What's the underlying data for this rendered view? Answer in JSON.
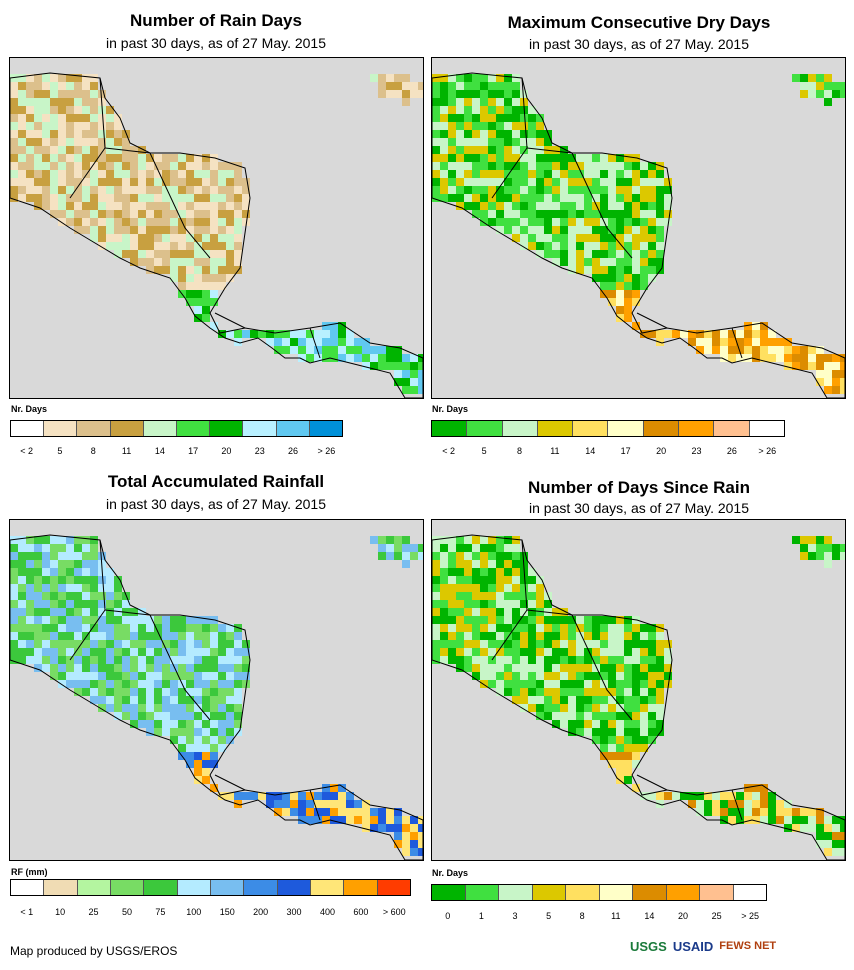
{
  "panels": [
    {
      "title": "Number of Rain Days",
      "subtitle": "in past 30 days, as of 27 May. 2015",
      "legend_label": "Nr. Days",
      "legend_colors": [
        "#ffffff",
        "#f5e2c2",
        "#dcc08c",
        "#c8a040",
        "#c8f5c8",
        "#40e040",
        "#00b400",
        "#b8f0ff",
        "#60c8f0",
        "#0090d8"
      ],
      "legend_ticks": [
        "< 2",
        "5",
        "8",
        "11",
        "14",
        "17",
        "20",
        "23",
        "26",
        "> 26"
      ],
      "palette": [
        "#f5e2c2",
        "#dcc08c",
        "#c8a040",
        "#c8f5c8",
        "#40e040",
        "#00b400",
        "#b8f0ff",
        "#60c8f0"
      ]
    },
    {
      "title": "Maximum Consecutive Dry Days",
      "subtitle": "in past 30 days, as of 27 May. 2015",
      "legend_label": "Nr. Days",
      "legend_colors": [
        "#00b400",
        "#40e040",
        "#c8f5c8",
        "#dcc800",
        "#ffe060",
        "#ffffc8",
        "#dc8c00",
        "#ffa000",
        "#ffc090",
        "#ffffff"
      ],
      "legend_ticks": [
        "< 2",
        "5",
        "8",
        "11",
        "14",
        "17",
        "20",
        "23",
        "26",
        "> 26"
      ],
      "palette": [
        "#00b400",
        "#40e040",
        "#c8f5c8",
        "#dcc800",
        "#ffe060",
        "#ffffc8",
        "#dc8c00",
        "#ffa000"
      ]
    },
    {
      "title": "Total Accumulated Rainfall",
      "subtitle": "in past 30 days, as of 27 May. 2015",
      "legend_label": "RF (mm)",
      "legend_colors": [
        "#ffffff",
        "#f0dcb4",
        "#b4f5a0",
        "#78dc64",
        "#3cc83c",
        "#b4ebff",
        "#78bef0",
        "#3c8ce6",
        "#1e5adc",
        "#ffe678",
        "#ffa000",
        "#ff3c00"
      ],
      "legend_ticks": [
        "< 1",
        "10",
        "25",
        "50",
        "75",
        "100",
        "150",
        "200",
        "300",
        "400",
        "600",
        "> 600"
      ],
      "palette": [
        "#78dc64",
        "#3cc83c",
        "#b4ebff",
        "#78bef0",
        "#3c8ce6",
        "#1e5adc",
        "#ffe678",
        "#ffa000"
      ]
    },
    {
      "title": "Number of Days Since Rain",
      "subtitle": "in past 30 days, as of 27 May. 2015",
      "legend_label": "Nr. Days",
      "legend_colors": [
        "#00b400",
        "#40e040",
        "#c8f5c8",
        "#dcc800",
        "#ffe060",
        "#ffffc8",
        "#dc8c00",
        "#ffa000",
        "#ffc090",
        "#ffffff"
      ],
      "legend_ticks": [
        "0",
        "1",
        "3",
        "5",
        "8",
        "11",
        "14",
        "20",
        "25",
        "> 25"
      ],
      "palette": [
        "#00b400",
        "#40e040",
        "#c8f5c8",
        "#dcc800",
        "#ffe060",
        "#dc8c00",
        "#c8f5c8",
        "#00b400"
      ]
    }
  ],
  "footer": "Map produced by USGS/EROS",
  "logos": [
    "USGS",
    "USAID",
    "FEWS NET"
  ]
}
